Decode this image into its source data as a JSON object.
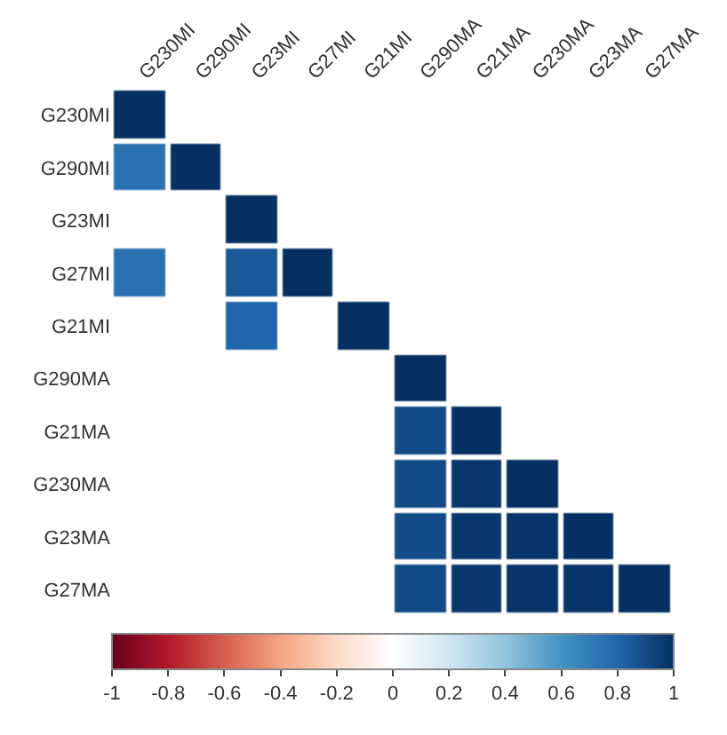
{
  "chart_data": {
    "type": "heatmap",
    "categories": [
      "G230MI",
      "G290MI",
      "G23MI",
      "G27MI",
      "G21MI",
      "G290MA",
      "G21MA",
      "G230MA",
      "G23MA",
      "G27MA"
    ],
    "y_categories": [
      "G230MI",
      "G290MI",
      "G23MI",
      "G27MI",
      "G21MI",
      "G290MA",
      "G21MA",
      "G230MA",
      "G23MA",
      "G27MA"
    ],
    "cells": [
      [
        1,
        null,
        null,
        null,
        null,
        null,
        null,
        null,
        null,
        null
      ],
      [
        0.75,
        1,
        null,
        null,
        null,
        null,
        null,
        null,
        null,
        null
      ],
      [
        null,
        null,
        1,
        null,
        null,
        null,
        null,
        null,
        null,
        null
      ],
      [
        0.75,
        null,
        0.85,
        1,
        null,
        null,
        null,
        null,
        null,
        null
      ],
      [
        null,
        null,
        0.8,
        null,
        1,
        null,
        null,
        null,
        null,
        null
      ],
      [
        null,
        null,
        null,
        null,
        null,
        1,
        null,
        null,
        null,
        null
      ],
      [
        null,
        null,
        null,
        null,
        null,
        0.9,
        1,
        null,
        null,
        null
      ],
      [
        null,
        null,
        null,
        null,
        null,
        0.9,
        0.97,
        1,
        null,
        null
      ],
      [
        null,
        null,
        null,
        null,
        null,
        0.9,
        0.97,
        0.98,
        1,
        null
      ],
      [
        null,
        null,
        null,
        null,
        null,
        0.9,
        0.97,
        0.98,
        0.98,
        1
      ]
    ],
    "clim": [
      -1,
      1
    ],
    "cticks": [
      -1,
      -0.8,
      -0.6,
      -0.4,
      -0.2,
      0,
      0.2,
      0.4,
      0.6,
      0.8,
      1
    ]
  }
}
